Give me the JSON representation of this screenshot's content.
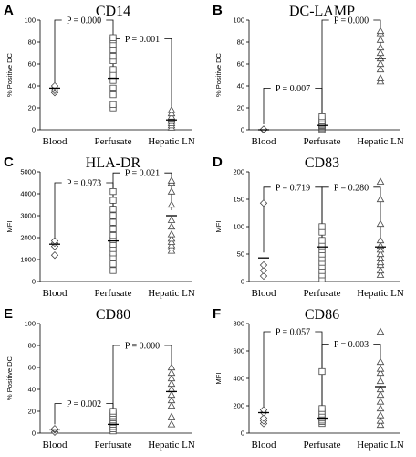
{
  "chart_data": [
    {
      "type": "scatter",
      "panel": "A",
      "title": "CD14",
      "ylabel": "% Positive DC",
      "ylim": [
        0,
        100
      ],
      "yticks": [
        "0",
        "20",
        "40",
        "60",
        "80",
        "100"
      ],
      "categories": [
        "Blood",
        "Perfusate",
        "Hepatic LN"
      ],
      "markers": [
        "diamond",
        "square",
        "triangle"
      ],
      "points": [
        [
          34,
          36,
          38,
          40
        ],
        [
          20,
          23,
          32,
          38,
          45,
          50,
          55,
          63,
          67,
          73,
          78,
          82,
          84
        ],
        [
          2,
          4,
          6,
          8,
          10,
          12,
          15,
          18
        ]
      ],
      "means": [
        38,
        47,
        9
      ],
      "comparisons": [
        {
          "from": 0,
          "to": 1,
          "y": 100,
          "label": "P = 0.000"
        },
        {
          "from": 1,
          "to": 2,
          "y": 83,
          "label": "P = 0.001"
        }
      ]
    },
    {
      "type": "scatter",
      "panel": "B",
      "title": "DC-LAMP",
      "ylabel": "% Positive DC",
      "ylim": [
        0,
        100
      ],
      "yticks": [
        "0",
        "20",
        "40",
        "60",
        "80",
        "100"
      ],
      "categories": [
        "Blood",
        "Perfusate",
        "Hepatic LN"
      ],
      "markers": [
        "diamond",
        "square",
        "triangle"
      ],
      "points": [
        [
          0,
          0.5
        ],
        [
          0,
          1,
          2,
          3,
          4,
          5,
          6,
          8,
          10,
          12
        ],
        [
          44,
          47,
          55,
          60,
          65,
          70,
          75,
          82,
          88,
          90
        ]
      ],
      "means": [
        0,
        4,
        65
      ],
      "comparisons": [
        {
          "from": 0,
          "to": 1,
          "y": 38,
          "label": "P = 0.007"
        },
        {
          "from": 1,
          "to": 2,
          "y": 100,
          "label": "P = 0.000"
        }
      ]
    },
    {
      "type": "scatter",
      "panel": "C",
      "title": "HLA-DR",
      "ylabel": "MFI",
      "ylim": [
        0,
        5000
      ],
      "yticks": [
        "0",
        "1000",
        "2000",
        "3000",
        "4000",
        "5000"
      ],
      "categories": [
        "Blood",
        "Perfusate",
        "Hepatic LN"
      ],
      "markers": [
        "diamond",
        "square",
        "triangle"
      ],
      "points": [
        [
          1200,
          1600,
          1750,
          1850
        ],
        [
          500,
          800,
          1100,
          1300,
          1500,
          1700,
          1900,
          2100,
          2400,
          2700,
          3000,
          3300,
          3700,
          4100
        ],
        [
          1400,
          1550,
          1650,
          1800,
          1950,
          2150,
          2500,
          2800,
          3500,
          4100,
          4500,
          4600
        ]
      ],
      "means": [
        1700,
        1850,
        3000
      ],
      "comparisons": [
        {
          "from": 0,
          "to": 1,
          "y": 4500,
          "label": "P = 0.973"
        },
        {
          "from": 1,
          "to": 2,
          "y": 4950,
          "label": "P = 0.021"
        }
      ]
    },
    {
      "type": "scatter",
      "panel": "D",
      "title": "CD83",
      "ylabel": "MFI",
      "ylim": [
        0,
        200
      ],
      "yticks": [
        "0",
        "50",
        "100",
        "150",
        "200"
      ],
      "categories": [
        "Blood",
        "Perfusate",
        "Hepatic LN"
      ],
      "markers": [
        "diamond",
        "square",
        "triangle"
      ],
      "points": [
        [
          10,
          20,
          30,
          143
        ],
        [
          5,
          12,
          20,
          28,
          35,
          42,
          50,
          58,
          65,
          75,
          90,
          100
        ],
        [
          12,
          20,
          30,
          35,
          42,
          50,
          58,
          65,
          75,
          105,
          150,
          182
        ]
      ],
      "means": [
        43,
        63,
        63
      ],
      "comparisons": [
        {
          "from": 0,
          "to": 1,
          "y": 172,
          "label": "P = 0.719"
        },
        {
          "from": 1,
          "to": 2,
          "y": 172,
          "label": "P = 0.280"
        }
      ]
    },
    {
      "type": "scatter",
      "panel": "E",
      "title": "CD80",
      "ylabel": "% Positive DC",
      "ylim": [
        0,
        100
      ],
      "yticks": [
        "0",
        "20",
        "40",
        "60",
        "80",
        "100"
      ],
      "categories": [
        "Blood",
        "Perfusate",
        "Hepatic LN"
      ],
      "markers": [
        "diamond",
        "square",
        "triangle"
      ],
      "points": [
        [
          1,
          3,
          4
        ],
        [
          2,
          4,
          6,
          8,
          10,
          12,
          14,
          16,
          18,
          20
        ],
        [
          8,
          15,
          25,
          30,
          35,
          40,
          45,
          50,
          55,
          60
        ]
      ],
      "means": [
        3,
        8,
        38
      ],
      "comparisons": [
        {
          "from": 0,
          "to": 1,
          "y": 27,
          "label": "P = 0.002"
        },
        {
          "from": 1,
          "to": 2,
          "y": 80,
          "label": "P = 0.000"
        }
      ]
    },
    {
      "type": "scatter",
      "panel": "F",
      "title": "CD86",
      "ylabel": "MFI",
      "ylim": [
        0,
        800
      ],
      "yticks": [
        "0",
        "200",
        "400",
        "600",
        "800"
      ],
      "categories": [
        "Blood",
        "Perfusate",
        "Hepatic LN"
      ],
      "markers": [
        "diamond",
        "square",
        "triangle"
      ],
      "points": [
        [
          70,
          90,
          110,
          150,
          170
        ],
        [
          70,
          85,
          95,
          110,
          120,
          140,
          160,
          180,
          450
        ],
        [
          60,
          90,
          130,
          180,
          230,
          280,
          320,
          380,
          440,
          470,
          520,
          740
        ]
      ],
      "means": [
        150,
        110,
        340
      ],
      "comparisons": [
        {
          "from": 0,
          "to": 1,
          "y": 740,
          "label": "P = 0.057"
        },
        {
          "from": 1,
          "to": 2,
          "y": 650,
          "label": "P = 0.003"
        }
      ]
    }
  ]
}
